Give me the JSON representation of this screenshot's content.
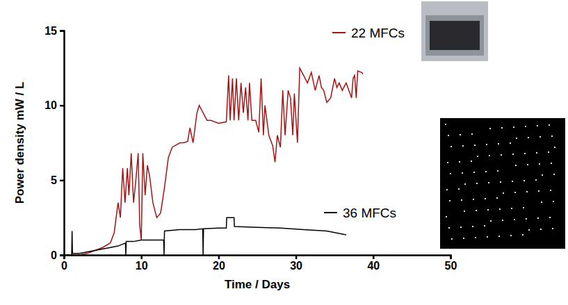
{
  "chart_data": {
    "type": "line",
    "x_label": "Time / Days",
    "y_label": "Power density mW / L",
    "xlim": [
      0,
      50
    ],
    "xticks": [
      0,
      10,
      20,
      30,
      40,
      50
    ],
    "ylim": [
      0,
      15
    ],
    "yticks": [
      0,
      5,
      10,
      15
    ],
    "grid": false,
    "series": [
      {
        "name": "22 MFCs",
        "color": "#a31515",
        "x": [
          0.5,
          2,
          3,
          4,
          5,
          6,
          6.5,
          7,
          7.3,
          7.6,
          7.9,
          8.2,
          8.4,
          8.7,
          9,
          9.3,
          9.6,
          9.8,
          10,
          10.2,
          10.5,
          10.8,
          11.1,
          11.5,
          12,
          12.5,
          13,
          13.5,
          14,
          15,
          15.5,
          16,
          16.3,
          16.7,
          17.2,
          17.5,
          18,
          18.5,
          19,
          20,
          21,
          21.3,
          21.5,
          21.8,
          22,
          22.3,
          22.6,
          22.9,
          23.2,
          23.5,
          23.8,
          24,
          24.3,
          24.8,
          25.2,
          25.5,
          25.8,
          26,
          26.5,
          27,
          27.3,
          27.6,
          28,
          28.3,
          28.6,
          29,
          29.3,
          29.6,
          29.8,
          30.2,
          30.5,
          31,
          31.5,
          32,
          32.5,
          33,
          33.3,
          33.6,
          34,
          34.5,
          35,
          35.3,
          35.6,
          36,
          36.5,
          37,
          37.2,
          37.4,
          37.6,
          37.8,
          38,
          38.5,
          38.7
        ],
        "values": [
          0,
          0,
          0.1,
          0.3,
          0.5,
          0.8,
          1.5,
          3.5,
          2.5,
          5.8,
          3.5,
          5.8,
          4,
          6.8,
          3.5,
          5,
          6.8,
          2,
          1,
          6.8,
          4,
          6,
          5.2,
          3.5,
          2.5,
          2.8,
          4.5,
          6.5,
          7.2,
          7.5,
          7.5,
          7.6,
          8.5,
          7.5,
          9.5,
          10,
          9.5,
          9,
          9,
          8.8,
          8.9,
          12,
          9,
          11.8,
          9,
          11.8,
          9,
          11.5,
          9.5,
          11.2,
          9,
          11.5,
          9,
          9,
          8.2,
          11.8,
          8,
          10,
          8,
          7.3,
          6.2,
          8,
          7.2,
          11,
          8,
          11,
          10.5,
          8,
          10.8,
          7.5,
          12.5,
          12,
          11.5,
          12.2,
          11,
          12,
          11.2,
          11,
          10.2,
          10.5,
          11.8,
          11.2,
          11.5,
          11,
          11.5,
          10.8,
          10.5,
          11.8,
          12,
          10.5,
          12.3,
          12.2,
          12.1
        ]
      },
      {
        "name": "36 MFCs",
        "color": "#000000",
        "x": [
          0,
          1,
          1.05,
          1.1,
          2,
          4,
          6,
          7,
          7.95,
          8,
          8.05,
          9,
          10,
          12,
          12.9,
          12.95,
          13,
          15,
          17,
          17.95,
          18,
          18.05,
          20,
          21,
          21.05,
          22,
          22.05,
          25,
          28,
          31,
          34,
          36.5
        ],
        "values": [
          0,
          0,
          1.6,
          0.1,
          0.1,
          0.3,
          0.5,
          0.6,
          0.8,
          0,
          0.9,
          0.9,
          1,
          1,
          1,
          0,
          1.6,
          1.7,
          1.7,
          1.75,
          0,
          1.75,
          1.8,
          1.8,
          2.5,
          2.5,
          1.9,
          1.85,
          1.8,
          1.7,
          1.6,
          1.35
        ]
      }
    ]
  }
}
